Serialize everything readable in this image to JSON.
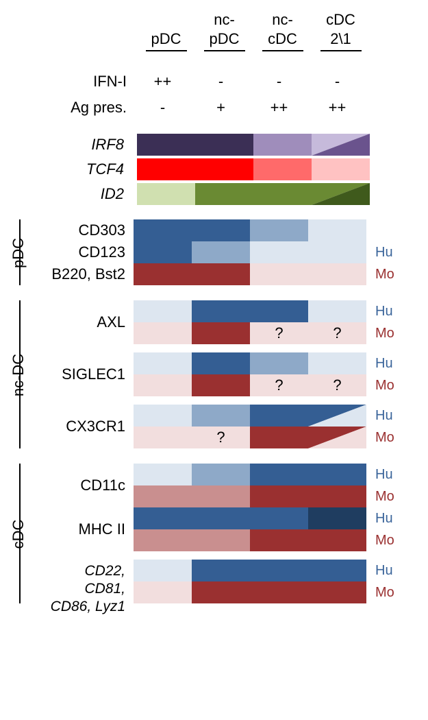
{
  "columns": [
    "pDC",
    "nc-\npDC",
    "nc-\ncDC",
    "cDC\n2\\1"
  ],
  "functional": [
    {
      "label": "IFN-I",
      "vals": [
        "++",
        "-",
        "-",
        "-"
      ]
    },
    {
      "label": "Ag pres.",
      "vals": [
        "-",
        "+",
        "++",
        "++"
      ]
    }
  ],
  "transcription_factors": [
    {
      "label": "IRF8",
      "cells": [
        {
          "fill": "#3b2f55"
        },
        {
          "fill": "#3b2f55"
        },
        {
          "fill": "#9f8dbb"
        },
        {
          "split": true,
          "fill_tl": "#c6badb",
          "fill_br": "#6a538d"
        }
      ]
    },
    {
      "label": "TCF4",
      "cells": [
        {
          "fill": "#ff0000"
        },
        {
          "fill": "#ff0000"
        },
        {
          "fill": "#ff6a6a"
        },
        {
          "fill": "#ffc2c2"
        }
      ]
    },
    {
      "label": "ID2",
      "cells": [
        {
          "fill": "#d0e0b0"
        },
        {
          "fill": "#6a8a33"
        },
        {
          "fill": "#6a8a33"
        },
        {
          "split": true,
          "fill_tl": "#6a8a33",
          "fill_br": "#3f5a1c"
        }
      ]
    }
  ],
  "colors": {
    "hu": {
      "high": "#345e93",
      "mid": "#8ea9c8",
      "low": "#dde6f0",
      "dark": "#1f3d60"
    },
    "mo": {
      "high": "#9a3030",
      "mid": "#c98f8f",
      "low": "#f2dede"
    }
  },
  "species_labels": {
    "hu": "Hu",
    "mo": "Mo"
  },
  "groups": [
    {
      "group_label": "pDC",
      "blocks": [
        {
          "entries": [
            {
              "label": "CD303",
              "rows": [
                {
                  "species": "hu",
                  "cells": [
                    {
                      "c": "high"
                    },
                    {
                      "c": "high"
                    },
                    {
                      "c": "mid"
                    },
                    {
                      "c": "low"
                    }
                  ]
                }
              ]
            },
            {
              "label": "CD123",
              "rows": [
                {
                  "species": "hu",
                  "cells": [
                    {
                      "c": "high"
                    },
                    {
                      "c": "mid"
                    },
                    {
                      "c": "low"
                    },
                    {
                      "c": "low"
                    }
                  ]
                }
              ],
              "sp_first": true
            },
            {
              "label": "B220, Bst2",
              "rows": [
                {
                  "species": "mo",
                  "cells": [
                    {
                      "c": "high"
                    },
                    {
                      "c": "high"
                    },
                    {
                      "c": "low"
                    },
                    {
                      "c": "low"
                    }
                  ]
                }
              ],
              "sp_first": true
            }
          ]
        }
      ]
    },
    {
      "group_label": "nc-DC",
      "blocks": [
        {
          "entries": [
            {
              "label": "AXL",
              "rows": [
                {
                  "species": "hu",
                  "cells": [
                    {
                      "c": "low"
                    },
                    {
                      "c": "high"
                    },
                    {
                      "c": "high"
                    },
                    {
                      "c": "low"
                    }
                  ]
                },
                {
                  "species": "mo",
                  "cells": [
                    {
                      "c": "low"
                    },
                    {
                      "c": "high"
                    },
                    {
                      "c": "low",
                      "txt": "?"
                    },
                    {
                      "c": "low",
                      "txt": "?"
                    }
                  ]
                }
              ]
            }
          ]
        },
        {
          "entries": [
            {
              "label": "SIGLEC1",
              "rows": [
                {
                  "species": "hu",
                  "cells": [
                    {
                      "c": "low"
                    },
                    {
                      "c": "high"
                    },
                    {
                      "c": "mid"
                    },
                    {
                      "c": "low"
                    }
                  ]
                },
                {
                  "species": "mo",
                  "cells": [
                    {
                      "c": "low"
                    },
                    {
                      "c": "high"
                    },
                    {
                      "c": "low",
                      "txt": "?"
                    },
                    {
                      "c": "low",
                      "txt": "?"
                    }
                  ]
                }
              ]
            }
          ]
        },
        {
          "entries": [
            {
              "label": "CX3CR1",
              "rows": [
                {
                  "species": "hu",
                  "cells": [
                    {
                      "c": "low"
                    },
                    {
                      "c": "mid"
                    },
                    {
                      "c": "high"
                    },
                    {
                      "split": true,
                      "tl": "high",
                      "br": "low"
                    }
                  ]
                },
                {
                  "species": "mo",
                  "cells": [
                    {
                      "c": "low"
                    },
                    {
                      "c": "low",
                      "txt": "?"
                    },
                    {
                      "c": "high"
                    },
                    {
                      "split": true,
                      "tl": "high",
                      "br": "low"
                    }
                  ]
                }
              ]
            }
          ]
        }
      ]
    },
    {
      "group_label": "cDC",
      "blocks": [
        {
          "entries": [
            {
              "label": "CD11c",
              "rows": [
                {
                  "species": "hu",
                  "cells": [
                    {
                      "c": "low"
                    },
                    {
                      "c": "mid"
                    },
                    {
                      "c": "high"
                    },
                    {
                      "c": "high"
                    }
                  ]
                },
                {
                  "species": "mo",
                  "cells": [
                    {
                      "c": "mid"
                    },
                    {
                      "c": "mid"
                    },
                    {
                      "c": "high"
                    },
                    {
                      "c": "high"
                    }
                  ]
                }
              ]
            },
            {
              "label": "MHC II",
              "rows": [
                {
                  "species": "hu",
                  "cells": [
                    {
                      "c": "high"
                    },
                    {
                      "c": "high"
                    },
                    {
                      "c": "high"
                    },
                    {
                      "c": "dark"
                    }
                  ]
                },
                {
                  "species": "mo",
                  "cells": [
                    {
                      "c": "mid"
                    },
                    {
                      "c": "mid"
                    },
                    {
                      "c": "high"
                    },
                    {
                      "c": "high"
                    }
                  ]
                }
              ]
            }
          ]
        },
        {
          "entries": [
            {
              "label_multi": [
                "CD22,",
                "CD81,",
                "CD86, Lyz1"
              ],
              "italic": true,
              "rows": [
                {
                  "species": "hu",
                  "cells": [
                    {
                      "c": "low"
                    },
                    {
                      "c": "high"
                    },
                    {
                      "c": "high"
                    },
                    {
                      "c": "high"
                    }
                  ]
                },
                {
                  "species": "mo",
                  "cells": [
                    {
                      "c": "low"
                    },
                    {
                      "c": "high"
                    },
                    {
                      "c": "high"
                    },
                    {
                      "c": "high"
                    }
                  ]
                }
              ]
            }
          ]
        }
      ]
    }
  ]
}
